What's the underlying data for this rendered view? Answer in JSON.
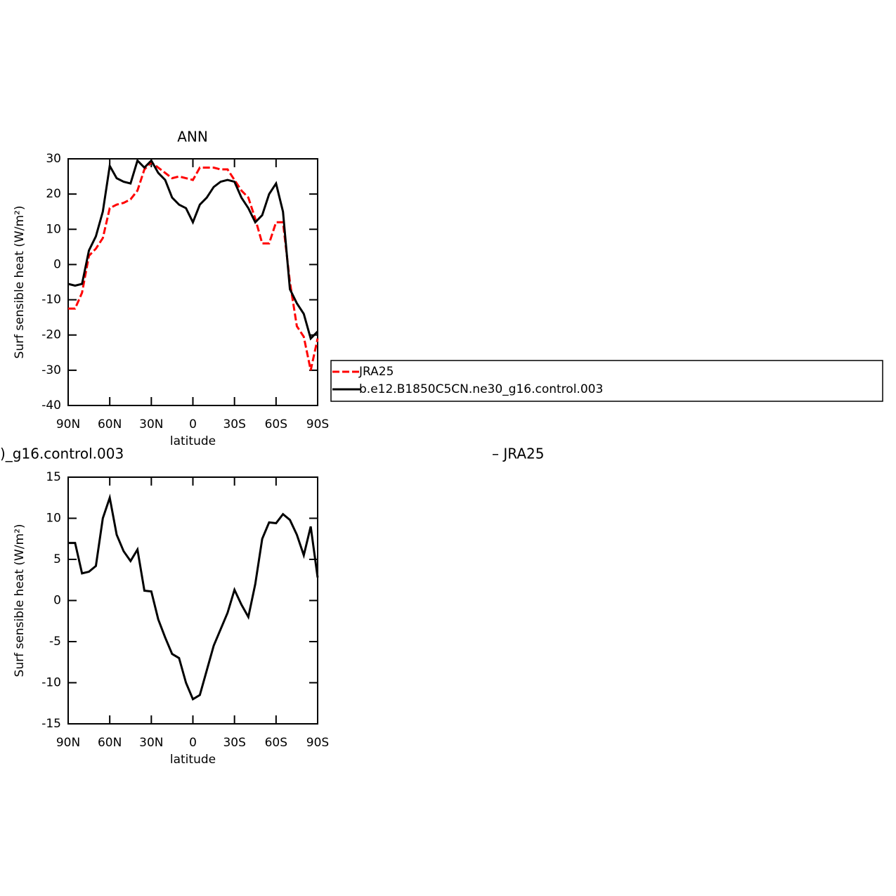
{
  "chart_data": [
    {
      "type": "line",
      "title": "ANN",
      "xlabel": "latitude",
      "ylabel": "Surf sensible heat (W/m²)",
      "x": [
        90,
        85,
        80,
        75,
        70,
        65,
        60,
        55,
        50,
        45,
        40,
        35,
        30,
        25,
        20,
        15,
        10,
        5,
        0,
        -5,
        -10,
        -15,
        -20,
        -25,
        -30,
        -35,
        -40,
        -45,
        -50,
        -55,
        -60,
        -65,
        -70,
        -75,
        -80,
        -85,
        -90
      ],
      "series": [
        {
          "name": "JRA25",
          "color": "#ff0000",
          "dash": true,
          "values": [
            -12.5,
            -12.5,
            -8,
            2.5,
            4.5,
            7.5,
            16,
            17,
            17.5,
            18.5,
            21,
            27,
            29,
            27.5,
            26,
            24.5,
            25,
            24.5,
            24,
            27.5,
            27.5,
            27.5,
            27,
            27,
            24,
            21,
            19,
            13,
            6,
            6,
            12,
            12,
            -5,
            -17.5,
            -20.5,
            -30,
            -21
          ]
        },
        {
          "name": "b.e12.B1850C5CN.ne30_g16.control.003",
          "color": "#000000",
          "dash": false,
          "values": [
            -5.5,
            -6,
            -5.5,
            4,
            8,
            15,
            28,
            24.5,
            23.5,
            23,
            29.5,
            27.5,
            29.5,
            26,
            24,
            19,
            17,
            16,
            12,
            17,
            19,
            22,
            23.5,
            24,
            23.5,
            19,
            16,
            12,
            14,
            20,
            23,
            15,
            -7,
            -11,
            -14,
            -21,
            -19
          ]
        }
      ],
      "xlim": [
        90,
        -90
      ],
      "xticks": [
        {
          "value": 90,
          "label": "90N"
        },
        {
          "value": 60,
          "label": "60N"
        },
        {
          "value": 30,
          "label": "30N"
        },
        0,
        {
          "value": -30,
          "label": "30S"
        },
        {
          "value": -60,
          "label": "60S"
        },
        {
          "value": -90,
          "label": "90S"
        }
      ],
      "ylim": [
        -40,
        30
      ],
      "yticks": [
        -40,
        -30,
        -20,
        -10,
        0,
        10,
        20,
        30
      ],
      "legend": "right"
    },
    {
      "type": "line",
      "title": ")_g16.control.003",
      "annotations": [
        "– JRA25"
      ],
      "xlabel": "latitude",
      "ylabel": "Surf sensible heat (W/m²)",
      "x": [
        90,
        85,
        80,
        75,
        70,
        65,
        60,
        55,
        50,
        45,
        40,
        35,
        30,
        25,
        20,
        15,
        10,
        5,
        0,
        -5,
        -10,
        -15,
        -20,
        -25,
        -30,
        -35,
        -40,
        -45,
        -50,
        -55,
        -60,
        -65,
        -70,
        -75,
        -80,
        -85,
        -90
      ],
      "series": [
        {
          "color": "#000000",
          "dash": false,
          "values": [
            7,
            7,
            3.3,
            3.5,
            4.2,
            10,
            12.5,
            8,
            6,
            4.8,
            6.2,
            1.2,
            1.1,
            -2.3,
            -4.5,
            -6.5,
            -7,
            -10,
            -12,
            -11.5,
            -8.5,
            -5.5,
            -3.5,
            -1.5,
            1.3,
            -0.5,
            -2,
            2,
            7.5,
            9.5,
            9.4,
            10.5,
            9.8,
            8,
            5.5,
            9,
            2.8
          ]
        }
      ],
      "xlim": [
        90,
        -90
      ],
      "xticks": [
        {
          "value": 90,
          "label": "90N"
        },
        {
          "value": 60,
          "label": "60N"
        },
        {
          "value": 30,
          "label": "30N"
        },
        0,
        {
          "value": -30,
          "label": "30S"
        },
        {
          "value": -60,
          "label": "60S"
        },
        {
          "value": -90,
          "label": "90S"
        }
      ],
      "ylim": [
        -15,
        15
      ],
      "yticks": [
        -15,
        -10,
        -5,
        0,
        5,
        10,
        15
      ]
    }
  ]
}
